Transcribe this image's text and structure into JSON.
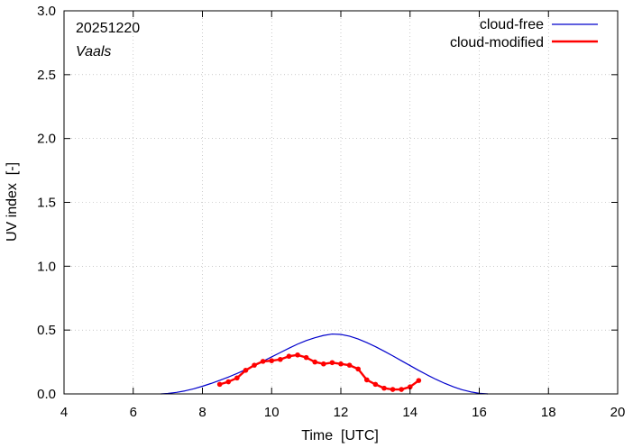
{
  "chart_data": {
    "type": "line",
    "title": "",
    "date_label": "20251220",
    "location_label": "Vaals",
    "xlabel": "Time  [UTC]",
    "ylabel": "UV index  [-]",
    "xlim": [
      4,
      20
    ],
    "ylim": [
      0,
      3.0
    ],
    "xticks": [
      4,
      6,
      8,
      10,
      12,
      14,
      16,
      18,
      20
    ],
    "xtick_labels": [
      "4",
      "6",
      "8",
      "10",
      "12",
      "14",
      "16",
      "18",
      "20"
    ],
    "yticks": [
      0,
      0.5,
      1.0,
      1.5,
      2.0,
      2.5,
      3.0
    ],
    "ytick_labels": [
      "0.0",
      "0.5",
      "1.0",
      "1.5",
      "2.0",
      "2.5",
      "3.0"
    ],
    "legend": {
      "position": "top-right",
      "entries": [
        "cloud-free",
        "cloud-modified"
      ]
    },
    "series": [
      {
        "name": "cloud-free",
        "color": "#0000cc",
        "markers": false,
        "x": [
          6.8,
          7.0,
          7.25,
          7.5,
          7.75,
          8.0,
          8.25,
          8.5,
          8.75,
          9.0,
          9.25,
          9.5,
          9.75,
          10.0,
          10.25,
          10.5,
          10.75,
          11.0,
          11.25,
          11.5,
          11.75,
          12.0,
          12.25,
          12.5,
          12.75,
          13.0,
          13.25,
          13.5,
          13.75,
          14.0,
          14.25,
          14.5,
          14.75,
          15.0,
          15.25,
          15.5,
          15.75,
          16.0,
          16.25
        ],
        "y": [
          0.0,
          0.004,
          0.012,
          0.024,
          0.04,
          0.06,
          0.082,
          0.106,
          0.132,
          0.16,
          0.19,
          0.222,
          0.256,
          0.29,
          0.324,
          0.358,
          0.39,
          0.418,
          0.44,
          0.458,
          0.469,
          0.466,
          0.452,
          0.43,
          0.402,
          0.37,
          0.335,
          0.298,
          0.26,
          0.222,
          0.184,
          0.148,
          0.114,
          0.083,
          0.056,
          0.033,
          0.016,
          0.005,
          0.0
        ]
      },
      {
        "name": "cloud-modified",
        "color": "#ff0000",
        "markers": true,
        "x": [
          8.5,
          8.75,
          9.0,
          9.25,
          9.5,
          9.75,
          10.0,
          10.25,
          10.5,
          10.75,
          11.0,
          11.25,
          11.5,
          11.75,
          12.0,
          12.25,
          12.5,
          12.75,
          13.0,
          13.25,
          13.5,
          13.75,
          14.0,
          14.25
        ],
        "y": [
          0.075,
          0.095,
          0.125,
          0.185,
          0.225,
          0.255,
          0.26,
          0.27,
          0.295,
          0.305,
          0.285,
          0.25,
          0.235,
          0.245,
          0.235,
          0.225,
          0.195,
          0.11,
          0.075,
          0.045,
          0.035,
          0.035,
          0.055,
          0.105
        ]
      }
    ]
  }
}
